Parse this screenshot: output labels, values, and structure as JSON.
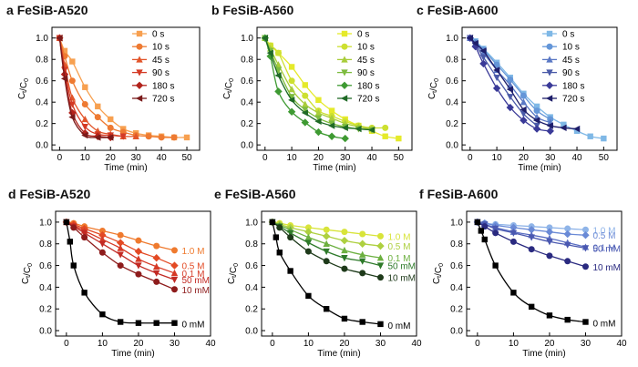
{
  "chart_data": [
    {
      "panel_letter": "a",
      "title": "FeSiB-A520",
      "type": "line",
      "xlabel": "Time (min)",
      "ylabel": "Ct/C0",
      "xlim": [
        -3,
        55
      ],
      "ylim": [
        -0.05,
        1.1
      ],
      "xticks": [
        "0",
        "10",
        "20",
        "30",
        "40",
        "50"
      ],
      "yticks": [
        "0.0",
        "0.2",
        "0.4",
        "0.6",
        "0.8",
        "1.0"
      ],
      "legend_position": "top-right",
      "series": [
        {
          "name": "0 s",
          "marker": "square",
          "color": "#f7a050",
          "x": [
            0,
            2,
            5,
            10,
            15,
            20,
            25,
            30,
            35,
            40,
            45,
            50
          ],
          "y": [
            1.0,
            0.88,
            0.78,
            0.54,
            0.36,
            0.24,
            0.15,
            0.11,
            0.09,
            0.08,
            0.07,
            0.07
          ]
        },
        {
          "name": "10 s",
          "marker": "circle",
          "color": "#ee7a32",
          "x": [
            0,
            2,
            5,
            10,
            15,
            20,
            25,
            30,
            35,
            40,
            45
          ],
          "y": [
            1.0,
            0.83,
            0.6,
            0.38,
            0.26,
            0.16,
            0.12,
            0.09,
            0.08,
            0.07,
            0.07
          ]
        },
        {
          "name": "45 s",
          "marker": "triangle-up",
          "color": "#e2552a",
          "x": [
            0,
            2,
            5,
            10,
            15,
            20,
            25,
            30
          ],
          "y": [
            1.0,
            0.75,
            0.44,
            0.24,
            0.13,
            0.1,
            0.08,
            0.08
          ]
        },
        {
          "name": "90 s",
          "marker": "triangle-down",
          "color": "#d43a25",
          "x": [
            0,
            2,
            5,
            10,
            15,
            20,
            25
          ],
          "y": [
            1.0,
            0.7,
            0.38,
            0.17,
            0.1,
            0.09,
            0.08
          ]
        },
        {
          "name": "180 s",
          "marker": "diamond",
          "color": "#b2231c",
          "x": [
            0,
            2,
            5,
            10,
            15,
            20
          ],
          "y": [
            1.0,
            0.66,
            0.3,
            0.11,
            0.08,
            0.07
          ]
        },
        {
          "name": "720 s",
          "marker": "triangle-left",
          "color": "#7a1a1a",
          "x": [
            0,
            2,
            5,
            10,
            15,
            20
          ],
          "y": [
            1.0,
            0.62,
            0.26,
            0.09,
            0.07,
            0.07
          ]
        }
      ]
    },
    {
      "panel_letter": "b",
      "title": "FeSiB-A560",
      "type": "line",
      "xlabel": "Time (min)",
      "ylabel": "Ct/C0",
      "xlim": [
        -3,
        55
      ],
      "ylim": [
        -0.05,
        1.1
      ],
      "xticks": [
        "0",
        "10",
        "20",
        "30",
        "40",
        "50"
      ],
      "yticks": [
        "0.0",
        "0.2",
        "0.4",
        "0.6",
        "0.8",
        "1.0"
      ],
      "legend_position": "top-right",
      "series": [
        {
          "name": "0 s",
          "marker": "square",
          "color": "#e5ea2a",
          "x": [
            0,
            2,
            5,
            10,
            15,
            20,
            25,
            30,
            35,
            40,
            45,
            50
          ],
          "y": [
            1.0,
            0.93,
            0.86,
            0.73,
            0.56,
            0.42,
            0.32,
            0.24,
            0.18,
            0.13,
            0.08,
            0.06
          ]
        },
        {
          "name": "10 s",
          "marker": "circle",
          "color": "#cde030",
          "x": [
            0,
            2,
            5,
            10,
            15,
            20,
            25,
            30,
            35,
            40,
            45
          ],
          "y": [
            1.0,
            0.93,
            0.86,
            0.6,
            0.46,
            0.32,
            0.27,
            0.22,
            0.18,
            0.16,
            0.16
          ]
        },
        {
          "name": "45 s",
          "marker": "triangle-up",
          "color": "#a8cc3a",
          "x": [
            0,
            2,
            5,
            10,
            15,
            20,
            25,
            30,
            35,
            40
          ],
          "y": [
            1.0,
            0.9,
            0.75,
            0.52,
            0.38,
            0.3,
            0.25,
            0.2,
            0.17,
            0.15
          ]
        },
        {
          "name": "90 s",
          "marker": "triangle-down",
          "color": "#7dbb3e",
          "x": [
            0,
            2,
            5,
            10,
            15,
            20,
            25,
            30,
            35,
            40
          ],
          "y": [
            1.0,
            0.88,
            0.7,
            0.45,
            0.33,
            0.25,
            0.2,
            0.17,
            0.15,
            0.14
          ]
        },
        {
          "name": "180 s",
          "marker": "diamond",
          "color": "#3e9a32",
          "x": [
            0,
            2,
            5,
            10,
            15,
            20,
            25,
            30
          ],
          "y": [
            1.0,
            0.83,
            0.5,
            0.31,
            0.21,
            0.12,
            0.08,
            0.06
          ]
        },
        {
          "name": "720 s",
          "marker": "triangle-left",
          "color": "#1f6a26",
          "x": [
            0,
            2,
            5,
            10,
            15,
            20,
            25,
            30,
            35,
            40
          ],
          "y": [
            1.0,
            0.86,
            0.65,
            0.42,
            0.3,
            0.22,
            0.18,
            0.16,
            0.15,
            0.14
          ]
        }
      ]
    },
    {
      "panel_letter": "c",
      "title": "FeSiB-A600",
      "type": "line",
      "xlabel": "Time (min)",
      "ylabel": "Ct/C0",
      "xlim": [
        -3,
        55
      ],
      "ylim": [
        -0.05,
        1.1
      ],
      "xticks": [
        "0",
        "10",
        "20",
        "30",
        "40",
        "50"
      ],
      "yticks": [
        "0.0",
        "0.2",
        "0.4",
        "0.6",
        "0.8",
        "1.0"
      ],
      "legend_position": "top-right",
      "series": [
        {
          "name": "0 s",
          "marker": "square",
          "color": "#7fb8e6",
          "x": [
            0,
            2,
            5,
            10,
            15,
            20,
            25,
            30,
            35,
            40,
            45,
            50
          ],
          "y": [
            1.0,
            0.97,
            0.9,
            0.77,
            0.63,
            0.48,
            0.36,
            0.26,
            0.19,
            0.13,
            0.08,
            0.06
          ]
        },
        {
          "name": "10 s",
          "marker": "circle",
          "color": "#6496d8",
          "x": [
            0,
            2,
            5,
            10,
            15,
            20,
            25,
            30
          ],
          "y": [
            1.0,
            0.96,
            0.89,
            0.75,
            0.61,
            0.46,
            0.32,
            0.24
          ]
        },
        {
          "name": "45 s",
          "marker": "triangle-up",
          "color": "#5a78c4",
          "x": [
            0,
            2,
            5,
            10,
            15,
            20,
            25,
            30
          ],
          "y": [
            1.0,
            0.95,
            0.86,
            0.7,
            0.56,
            0.4,
            0.26,
            0.21
          ]
        },
        {
          "name": "90 s",
          "marker": "triangle-down",
          "color": "#4a5aa8",
          "x": [
            0,
            2,
            5,
            10,
            15,
            20,
            25
          ],
          "y": [
            1.0,
            0.94,
            0.82,
            0.63,
            0.45,
            0.29,
            0.18
          ]
        },
        {
          "name": "180 s",
          "marker": "diamond",
          "color": "#3a3a98",
          "x": [
            0,
            2,
            5,
            10,
            15,
            20,
            25,
            30
          ],
          "y": [
            1.0,
            0.92,
            0.76,
            0.53,
            0.35,
            0.23,
            0.15,
            0.13
          ]
        },
        {
          "name": "720 s",
          "marker": "triangle-left",
          "color": "#1e1e6a",
          "x": [
            0,
            2,
            5,
            10,
            15,
            20,
            25,
            30,
            35,
            40
          ],
          "y": [
            1.0,
            0.95,
            0.88,
            0.7,
            0.52,
            0.33,
            0.23,
            0.18,
            0.16,
            0.15
          ]
        }
      ]
    },
    {
      "panel_letter": "d",
      "title": "FeSiB-A520",
      "type": "line",
      "xlabel": "Time (min)",
      "ylabel": "Ct/C0",
      "xlim": [
        -3,
        40
      ],
      "ylim": [
        -0.05,
        1.1
      ],
      "xticks": [
        "0",
        "10",
        "20",
        "30",
        "40"
      ],
      "yticks": [
        "0.0",
        "0.2",
        "0.4",
        "0.6",
        "0.8",
        "1.0"
      ],
      "legend_position": "right",
      "series": [
        {
          "name": "1.0 M",
          "marker": "circle",
          "color": "#ef7a2e",
          "x": [
            0,
            2,
            5,
            10,
            15,
            20,
            25,
            30
          ],
          "y": [
            1.0,
            0.99,
            0.96,
            0.92,
            0.88,
            0.83,
            0.78,
            0.74
          ]
        },
        {
          "name": "0.5 M",
          "marker": "diamond",
          "color": "#e34a24",
          "x": [
            0,
            2,
            5,
            10,
            15,
            20,
            25,
            30
          ],
          "y": [
            1.0,
            0.98,
            0.94,
            0.88,
            0.81,
            0.73,
            0.67,
            0.6
          ]
        },
        {
          "name": "0.1 M",
          "marker": "triangle-up",
          "color": "#d63a26",
          "x": [
            0,
            2,
            5,
            10,
            15,
            20,
            25,
            30
          ],
          "y": [
            1.0,
            0.97,
            0.92,
            0.84,
            0.76,
            0.66,
            0.59,
            0.53
          ]
        },
        {
          "name": "50 mM",
          "marker": "triangle-down",
          "color": "#c22a24",
          "x": [
            0,
            2,
            5,
            10,
            15,
            20,
            25,
            30
          ],
          "y": [
            1.0,
            0.96,
            0.9,
            0.8,
            0.7,
            0.6,
            0.53,
            0.47
          ]
        },
        {
          "name": "10 mM",
          "marker": "circle",
          "color": "#8e1c1c",
          "x": [
            0,
            2,
            5,
            10,
            15,
            20,
            25,
            30
          ],
          "y": [
            1.0,
            0.95,
            0.86,
            0.72,
            0.6,
            0.52,
            0.45,
            0.38
          ]
        },
        {
          "name": "0 mM",
          "marker": "square",
          "color": "#000000",
          "x": [
            0,
            1,
            2,
            5,
            10,
            15,
            20,
            25,
            30
          ],
          "y": [
            1.0,
            0.82,
            0.6,
            0.35,
            0.15,
            0.08,
            0.07,
            0.07,
            0.07
          ]
        }
      ]
    },
    {
      "panel_letter": "e",
      "title": "FeSiB-A560",
      "type": "line",
      "xlabel": "Time (min)",
      "ylabel": "Ct/C0",
      "xlim": [
        -3,
        40
      ],
      "ylim": [
        -0.05,
        1.1
      ],
      "xticks": [
        "0",
        "10",
        "20",
        "30",
        "40"
      ],
      "yticks": [
        "0.0",
        "0.2",
        "0.4",
        "0.6",
        "0.8",
        "1.0"
      ],
      "legend_position": "right",
      "series": [
        {
          "name": "1.0 M",
          "marker": "circle",
          "color": "#d8e43a",
          "x": [
            0,
            2,
            5,
            10,
            15,
            20,
            25,
            30
          ],
          "y": [
            1.0,
            0.99,
            0.97,
            0.95,
            0.93,
            0.91,
            0.89,
            0.87
          ]
        },
        {
          "name": "0.5 M",
          "marker": "diamond",
          "color": "#aed040",
          "x": [
            0,
            2,
            5,
            10,
            15,
            20,
            25,
            30
          ],
          "y": [
            1.0,
            0.98,
            0.95,
            0.91,
            0.87,
            0.83,
            0.8,
            0.78
          ]
        },
        {
          "name": "0.1 M",
          "marker": "triangle-up",
          "color": "#6cb040",
          "x": [
            0,
            2,
            5,
            10,
            15,
            20,
            25,
            30
          ],
          "y": [
            1.0,
            0.97,
            0.93,
            0.86,
            0.8,
            0.74,
            0.7,
            0.67
          ]
        },
        {
          "name": "50 mM",
          "marker": "triangle-down",
          "color": "#2e7a2a",
          "x": [
            0,
            2,
            5,
            10,
            15,
            20,
            25,
            30
          ],
          "y": [
            1.0,
            0.96,
            0.9,
            0.81,
            0.73,
            0.67,
            0.64,
            0.6
          ]
        },
        {
          "name": "10 mM",
          "marker": "circle",
          "color": "#1e3a1a",
          "x": [
            0,
            2,
            5,
            10,
            15,
            20,
            25,
            30
          ],
          "y": [
            1.0,
            0.95,
            0.86,
            0.73,
            0.64,
            0.57,
            0.53,
            0.49
          ]
        },
        {
          "name": "0 mM",
          "marker": "square",
          "color": "#000000",
          "x": [
            0,
            1,
            2,
            5,
            10,
            15,
            20,
            25,
            30
          ],
          "y": [
            1.0,
            0.86,
            0.72,
            0.55,
            0.32,
            0.2,
            0.11,
            0.08,
            0.06
          ]
        }
      ]
    },
    {
      "panel_letter": "f",
      "title": "FeSiB-A600",
      "type": "line",
      "xlabel": "Time (min)",
      "ylabel": "Ct/C0",
      "xlim": [
        -3,
        40
      ],
      "ylim": [
        -0.05,
        1.1
      ],
      "xticks": [
        "0",
        "10",
        "20",
        "30",
        "40"
      ],
      "yticks": [
        "0.0",
        "0.2",
        "0.4",
        "0.6",
        "0.8",
        "1.0"
      ],
      "legend_position": "right",
      "series": [
        {
          "name": "1.0 M",
          "marker": "circle",
          "color": "#8fb4e8",
          "x": [
            0,
            2,
            5,
            10,
            15,
            20,
            25,
            30
          ],
          "y": [
            1.0,
            0.99,
            0.98,
            0.97,
            0.96,
            0.95,
            0.94,
            0.93
          ]
        },
        {
          "name": "0.5 M",
          "marker": "diamond",
          "color": "#6a8ad6",
          "x": [
            0,
            2,
            5,
            10,
            15,
            20,
            25,
            30
          ],
          "y": [
            1.0,
            0.99,
            0.97,
            0.95,
            0.93,
            0.91,
            0.89,
            0.88
          ]
        },
        {
          "name": "0.1 M",
          "marker": "triangle-up",
          "color": "#5a6ec2",
          "x": [
            0,
            2,
            5,
            10,
            15,
            20,
            25,
            30
          ],
          "y": [
            1.0,
            0.98,
            0.95,
            0.91,
            0.88,
            0.85,
            0.81,
            0.77
          ]
        },
        {
          "name": "50 mM",
          "marker": "triangle-down",
          "color": "#4a58b0",
          "x": [
            0,
            2,
            5,
            10,
            15,
            20,
            25,
            30
          ],
          "y": [
            1.0,
            0.98,
            0.94,
            0.9,
            0.86,
            0.82,
            0.79,
            0.76
          ]
        },
        {
          "name": "10 mM",
          "marker": "circle",
          "color": "#2a2a80",
          "x": [
            0,
            2,
            5,
            10,
            15,
            20,
            25,
            30
          ],
          "y": [
            1.0,
            0.96,
            0.9,
            0.82,
            0.75,
            0.69,
            0.64,
            0.59
          ]
        },
        {
          "name": "0 mM",
          "marker": "square",
          "color": "#000000",
          "x": [
            0,
            1,
            2,
            5,
            10,
            15,
            20,
            25,
            30
          ],
          "y": [
            1.0,
            0.92,
            0.84,
            0.6,
            0.35,
            0.22,
            0.14,
            0.1,
            0.08
          ]
        }
      ]
    }
  ]
}
